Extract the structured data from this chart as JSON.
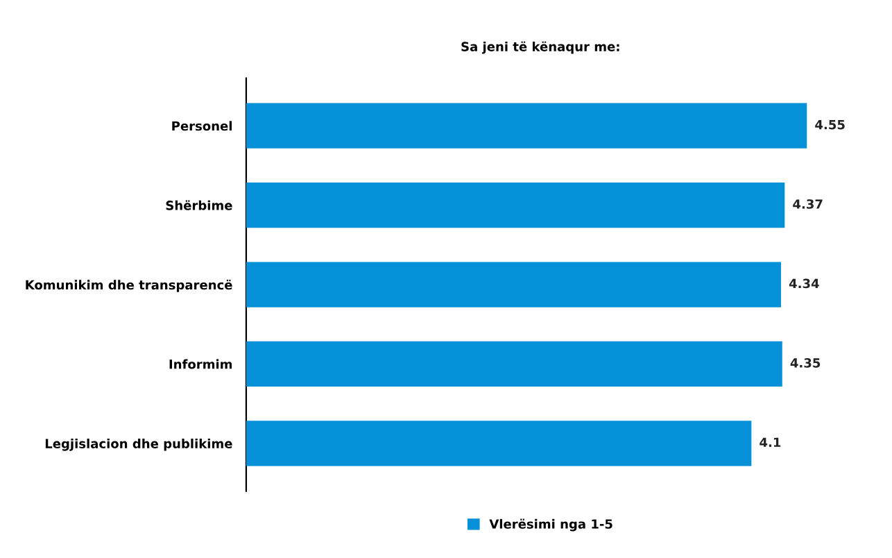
{
  "chart_data": {
    "type": "bar",
    "orientation": "horizontal",
    "title": "Sa jeni të kënaqur me:",
    "categories": [
      "Personel",
      "Shërbime",
      "Komunikim dhe transparencë",
      "Informim",
      "Legjislacion dhe publikime"
    ],
    "series": [
      {
        "name": "Vlerësimi nga 1-5",
        "color": "#0590d8",
        "values": [
          4.55,
          4.37,
          4.34,
          4.35,
          4.1
        ]
      }
    ],
    "data_labels": true,
    "legend": "bottom"
  }
}
